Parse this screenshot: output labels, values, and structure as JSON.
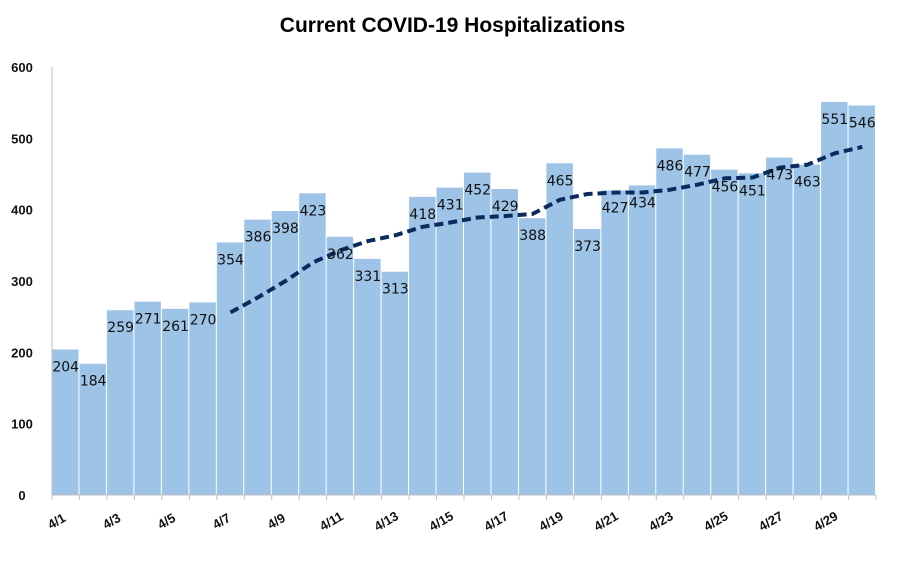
{
  "chart_data": {
    "type": "bar",
    "title": "Current COVID-19 Hospitalizations",
    "categories": [
      "4/1",
      "4/2",
      "4/3",
      "4/4",
      "4/5",
      "4/6",
      "4/7",
      "4/8",
      "4/9",
      "4/10",
      "4/11",
      "4/12",
      "4/13",
      "4/14",
      "4/15",
      "4/16",
      "4/17",
      "4/18",
      "4/19",
      "4/20",
      "4/21",
      "4/22",
      "4/23",
      "4/24",
      "4/25",
      "4/26",
      "4/27",
      "4/28",
      "4/29",
      "4/30"
    ],
    "x_tick_labels": [
      "4/1",
      "4/3",
      "4/5",
      "4/7",
      "4/9",
      "4/11",
      "4/13",
      "4/15",
      "4/17",
      "4/19",
      "4/21",
      "4/23",
      "4/25",
      "4/27",
      "4/29"
    ],
    "series": [
      {
        "values": [
          204,
          184,
          259,
          271,
          261,
          270,
          354,
          386,
          398,
          423,
          362,
          331,
          313,
          418,
          431,
          452,
          429,
          388,
          465,
          373,
          427,
          434,
          486,
          477,
          456,
          451,
          473,
          463,
          551,
          546
        ],
        "color": "#9dc3e6"
      },
      {
        "type": "line",
        "style": "dashed",
        "color": "#0b2a5e",
        "values": [
          null,
          null,
          null,
          null,
          null,
          null,
          256,
          277,
          300,
          326,
          343,
          356,
          364,
          376,
          382,
          389,
          391,
          394,
          414,
          422,
          424,
          424,
          428,
          435,
          444,
          445,
          459,
          463,
          479,
          488
        ]
      }
    ],
    "xlabel": "",
    "ylabel": "",
    "ylim": [
      0,
      600
    ],
    "yticks": [
      0,
      100,
      200,
      300,
      400,
      500,
      600
    ],
    "grid": false,
    "legend": "none",
    "data_labels": true
  }
}
